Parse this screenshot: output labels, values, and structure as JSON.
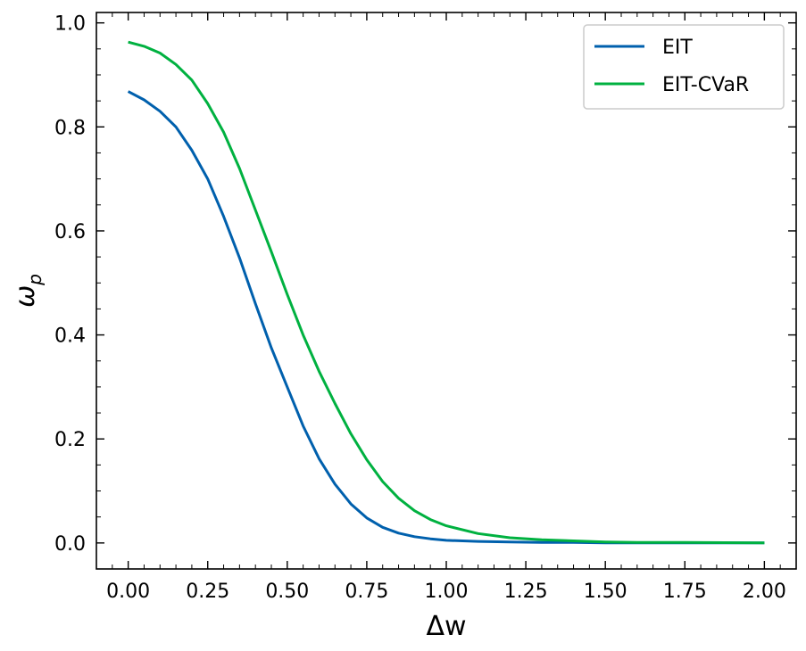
{
  "chart_data": {
    "type": "line",
    "xlabel": "Δw",
    "ylabel_main": "ω",
    "ylabel_sub": "p",
    "xlim": [
      -0.1,
      2.1
    ],
    "ylim": [
      -0.05,
      1.02
    ],
    "x_ticks": [
      "0.00",
      "0.25",
      "0.50",
      "0.75",
      "1.00",
      "1.25",
      "1.50",
      "1.75",
      "2.00"
    ],
    "y_ticks": [
      "0.0",
      "0.2",
      "0.4",
      "0.6",
      "0.8",
      "1.0"
    ],
    "legend_position": "top-right",
    "grid": false,
    "series": [
      {
        "name": "EIT",
        "color": "#0060ad",
        "x": [
          0.0,
          0.05,
          0.1,
          0.15,
          0.2,
          0.25,
          0.3,
          0.35,
          0.4,
          0.45,
          0.5,
          0.55,
          0.6,
          0.65,
          0.7,
          0.75,
          0.8,
          0.85,
          0.9,
          0.95,
          1.0,
          1.1,
          1.2,
          1.3,
          1.4,
          1.5,
          1.6,
          1.75,
          2.0
        ],
        "values": [
          0.868,
          0.852,
          0.83,
          0.8,
          0.755,
          0.7,
          0.628,
          0.548,
          0.46,
          0.375,
          0.3,
          0.225,
          0.162,
          0.113,
          0.075,
          0.048,
          0.03,
          0.019,
          0.012,
          0.008,
          0.005,
          0.003,
          0.002,
          0.001,
          0.001,
          0.0,
          0.0,
          0.0,
          0.0
        ]
      },
      {
        "name": "EIT-CVaR",
        "color": "#00b140",
        "x": [
          0.0,
          0.05,
          0.1,
          0.15,
          0.2,
          0.25,
          0.3,
          0.35,
          0.4,
          0.45,
          0.5,
          0.55,
          0.6,
          0.65,
          0.7,
          0.75,
          0.8,
          0.85,
          0.9,
          0.95,
          1.0,
          1.1,
          1.2,
          1.3,
          1.4,
          1.5,
          1.6,
          1.75,
          2.0
        ],
        "values": [
          0.963,
          0.955,
          0.942,
          0.92,
          0.89,
          0.845,
          0.79,
          0.72,
          0.64,
          0.56,
          0.478,
          0.4,
          0.33,
          0.268,
          0.21,
          0.16,
          0.118,
          0.086,
          0.062,
          0.045,
          0.033,
          0.018,
          0.01,
          0.006,
          0.004,
          0.002,
          0.001,
          0.001,
          0.0
        ]
      }
    ]
  }
}
